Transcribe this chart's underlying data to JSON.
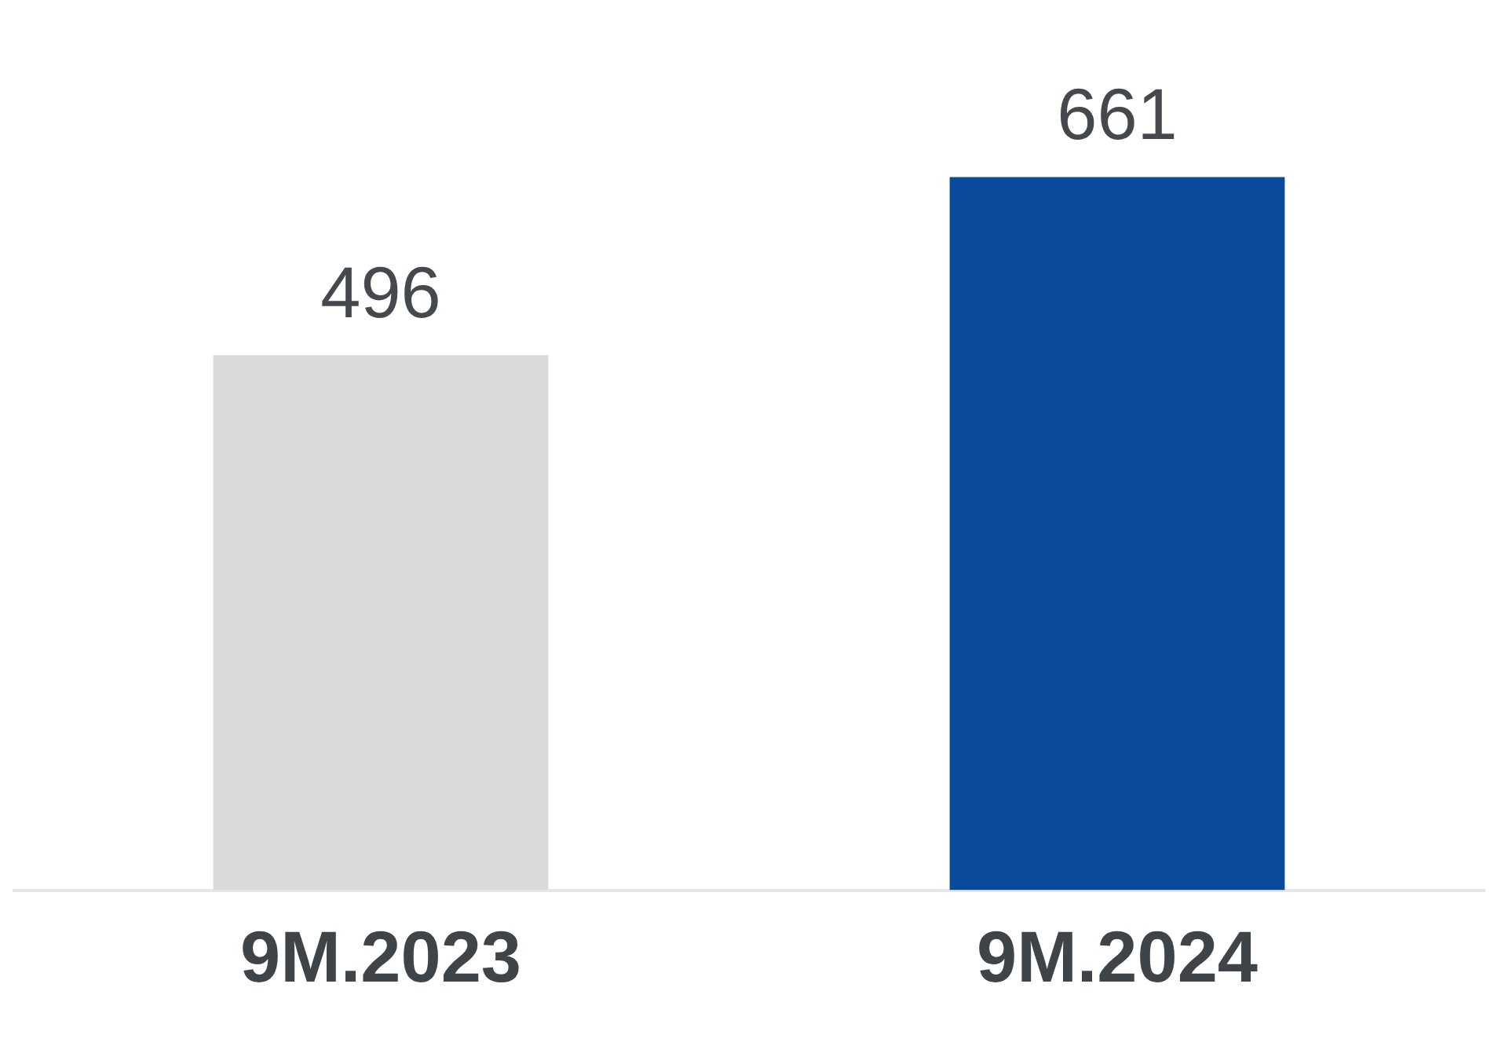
{
  "chart_data": {
    "type": "bar",
    "categories": [
      "9M.2023",
      "9M.2024"
    ],
    "values": [
      496,
      661
    ],
    "colors": [
      "#d9d9d9",
      "#0a4a9a"
    ],
    "data_labels": true,
    "grid": false,
    "legend": false
  }
}
